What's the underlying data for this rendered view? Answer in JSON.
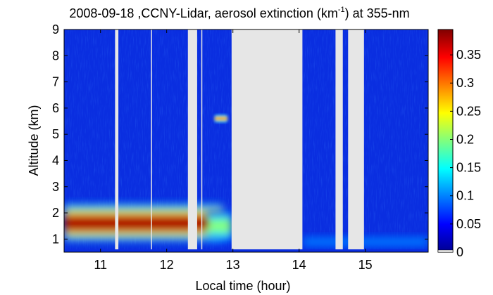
{
  "chart_data": {
    "type": "heatmap",
    "title": {
      "main": "2008-09-18 ,CCNY-Lidar, aerosol extinction (km",
      "superscript": "-1",
      "tail": ") at 355-nm"
    },
    "xlabel": "Local time (hour)",
    "ylabel": "Altitude (km)",
    "xlim": [
      10.45,
      15.95
    ],
    "ylim": [
      0.5,
      9.0
    ],
    "x_ticks": [
      11,
      12,
      13,
      14,
      15
    ],
    "x_tick_labels": [
      "11",
      "12",
      "13",
      "14",
      "15"
    ],
    "y_ticks": [
      1,
      2,
      3,
      4,
      5,
      6,
      7,
      8,
      9
    ],
    "y_tick_labels": [
      "1",
      "2",
      "3",
      "4",
      "5",
      "6",
      "7",
      "8",
      "9"
    ],
    "colorbar": {
      "range": [
        0,
        0.395
      ],
      "ticks": [
        0,
        0.05,
        0.1,
        0.15,
        0.2,
        0.25,
        0.3,
        0.35
      ],
      "tick_labels": [
        "0",
        "0.05",
        "0.1",
        "0.15",
        "0.2",
        "0.25",
        "0.3",
        "0.35"
      ],
      "colormap": "jet"
    },
    "no_data_intervals_hour": [
      [
        11.22,
        11.27
      ],
      [
        12.32,
        12.46
      ],
      [
        12.98,
        14.05
      ],
      [
        14.55,
        14.66
      ],
      [
        14.74,
        14.98
      ]
    ],
    "thin_gap_times_hour": [
      11.77,
      12.53
    ],
    "aerosol_layers": [
      {
        "time_hour": [
          10.45,
          12.85
        ],
        "altitude_km": [
          0.8,
          2.5
        ],
        "peak_altitude_km": 1.6,
        "peak_extinction_km-1": 0.38
      },
      {
        "time_hour": [
          12.6,
          12.98
        ],
        "altitude_km": [
          0.7,
          2.2
        ],
        "peak_altitude_km": 1.5,
        "peak_extinction_km-1": 0.2
      },
      {
        "time_hour": [
          14.05,
          15.95
        ],
        "altitude_km": [
          0.5,
          1.2
        ],
        "peak_altitude_km": 0.9,
        "peak_extinction_km-1": 0.1
      }
    ],
    "cloud_features": [
      {
        "time_hour": [
          12.72,
          12.92
        ],
        "altitude_km": [
          5.45,
          5.75
        ],
        "peak_extinction_km-1": 0.3
      }
    ],
    "background_extinction_km-1": 0.02,
    "missing_color": "#e6e6e6"
  }
}
